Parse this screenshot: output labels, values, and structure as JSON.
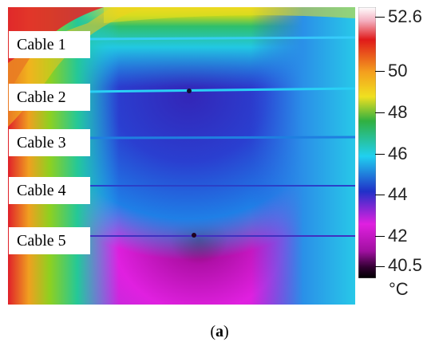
{
  "image": {
    "description": "thermal image of cables on a heated surface",
    "cables": [
      "Cable 1",
      "Cable 2",
      "Cable 3",
      "Cable 4",
      "Cable 5"
    ]
  },
  "colorbar": {
    "ticks": [
      "52.6",
      "50",
      "48",
      "46",
      "44",
      "42",
      "40.5"
    ],
    "unit": "°C",
    "min": 40.5,
    "max": 52.6
  },
  "caption": {
    "prefix": "(",
    "letter": "a",
    "suffix": ")"
  }
}
